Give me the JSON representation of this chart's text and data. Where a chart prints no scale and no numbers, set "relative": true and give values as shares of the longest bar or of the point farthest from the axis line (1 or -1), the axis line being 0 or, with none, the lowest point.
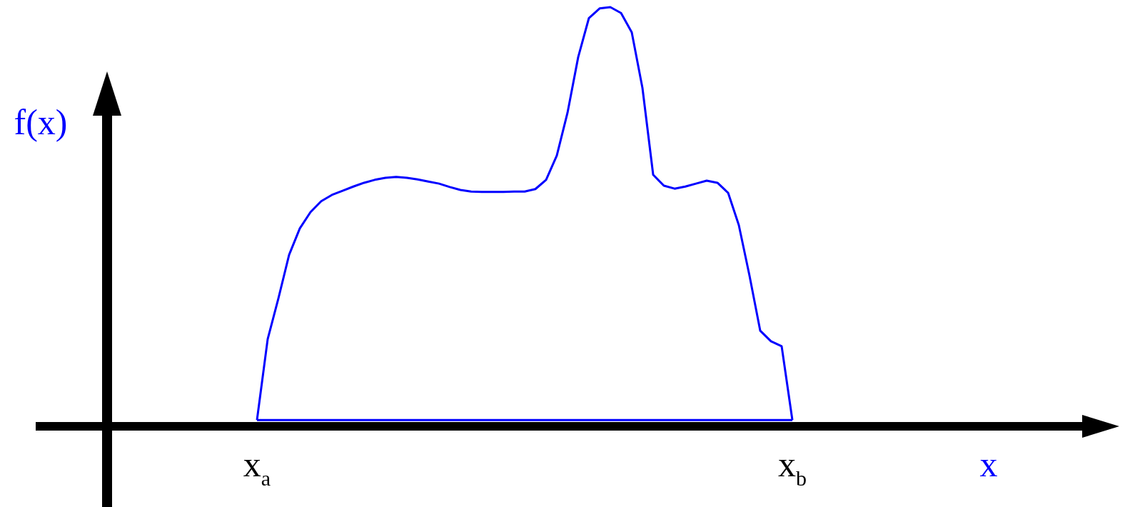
{
  "chart_data": {
    "type": "line",
    "relative": true,
    "ylabel": "f(x)",
    "xlabel": "x",
    "categories": [
      null,
      null,
      null,
      null,
      null,
      null,
      null,
      null,
      null,
      null,
      null,
      null,
      null,
      null,
      "x$_{a}$",
      null,
      null,
      null,
      null,
      null,
      null,
      null,
      null,
      null,
      null,
      null,
      null,
      null,
      null,
      null,
      null,
      null,
      null,
      null,
      null,
      null,
      null,
      null,
      null,
      null,
      null,
      null,
      null,
      null,
      null,
      null,
      null,
      null,
      null,
      null,
      null,
      null,
      null,
      null,
      null,
      null,
      null,
      null,
      null,
      null,
      null,
      null,
      null,
      null,
      "x$_{b}$",
      null,
      null,
      null,
      null,
      null,
      null,
      null,
      null,
      null,
      null,
      null,
      null,
      null,
      null,
      null,
      null,
      null,
      null,
      null,
      null,
      null,
      null,
      null,
      null,
      null,
      null
    ],
    "grid": false,
    "legend": false,
    "marker": "none",
    "line_style": "solid",
    "series": [
      {
        "color": "#0000ff",
        "values": [
          null,
          null,
          null,
          null,
          null,
          null,
          null,
          null,
          null,
          null,
          null,
          null,
          null,
          null,
          0.015,
          0.208,
          0.305,
          0.409,
          0.472,
          0.511,
          0.537,
          0.552,
          0.562,
          0.572,
          0.581,
          0.588,
          0.593,
          0.595,
          0.593,
          0.589,
          0.584,
          0.579,
          0.571,
          0.564,
          0.56,
          0.559,
          0.559,
          0.559,
          0.56,
          0.56,
          0.566,
          0.588,
          0.646,
          0.748,
          0.881,
          0.974,
          0.997,
          1,
          0.986,
          0.94,
          0.807,
          0.6,
          0.574,
          0.567,
          0.572,
          0.579,
          0.586,
          0.581,
          0.557,
          0.48,
          0.359,
          0.228,
          0.203,
          0.191,
          0.015,
          null,
          null,
          null,
          null,
          null,
          null,
          null,
          null,
          null,
          null,
          null,
          null,
          null,
          null,
          null,
          null,
          null,
          null,
          null,
          null,
          null,
          null,
          null,
          null,
          null,
          null
        ]
      },
      {
        "color": "#0000ff",
        "values": [
          null,
          null,
          null,
          null,
          null,
          null,
          null,
          null,
          null,
          null,
          null,
          null,
          null,
          null,
          0.015,
          null,
          null,
          null,
          null,
          null,
          null,
          null,
          null,
          null,
          null,
          null,
          null,
          null,
          null,
          null,
          null,
          null,
          null,
          null,
          null,
          null,
          null,
          null,
          null,
          null,
          null,
          null,
          null,
          null,
          null,
          null,
          null,
          null,
          null,
          null,
          null,
          null,
          null,
          null,
          null,
          null,
          null,
          null,
          null,
          null,
          null,
          null,
          null,
          null,
          0.015,
          null,
          null,
          null,
          null,
          null,
          null,
          null,
          null,
          null,
          null,
          null,
          null,
          null,
          null,
          null,
          null,
          null,
          null,
          null,
          null,
          null,
          null,
          null,
          null,
          null,
          null
        ]
      }
    ]
  }
}
